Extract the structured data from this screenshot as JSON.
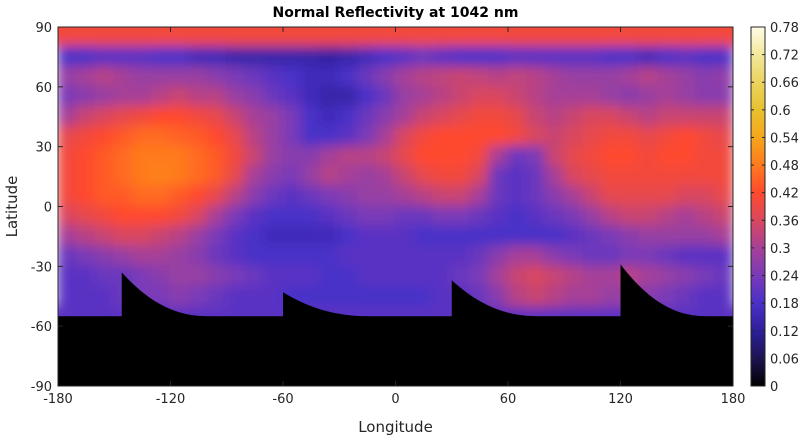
{
  "chart_data": {
    "type": "heatmap",
    "title": "Normal Reflectivity at 1042 nm",
    "xlabel": "Longitude",
    "ylabel": "Latitude",
    "xlim": [
      -180,
      180
    ],
    "ylim": [
      -90,
      90
    ],
    "x_ticks": [
      -180,
      -120,
      -60,
      0,
      60,
      120,
      180
    ],
    "x_tick_labels": [
      "-180",
      "-120",
      "-60",
      "0",
      "60",
      "120",
      "180"
    ],
    "y_ticks": [
      -90,
      -60,
      -30,
      0,
      30,
      60,
      90
    ],
    "y_tick_labels": [
      "-90",
      "-60",
      "-30",
      "0",
      "30",
      "60",
      "90"
    ],
    "colorbar": {
      "range": [
        0,
        0.78
      ],
      "ticks": [
        0,
        0.06,
        0.12,
        0.18,
        0.24,
        0.3,
        0.36,
        0.42,
        0.48,
        0.54,
        0.6,
        0.66,
        0.72,
        0.78
      ],
      "tick_labels": [
        "0",
        "0.06",
        "0.12",
        "0.18",
        "0.24",
        "0.3",
        "0.36",
        "0.42",
        "0.48",
        "0.54",
        "0.6",
        "0.66",
        "0.72",
        "0.78"
      ],
      "colormap": "hot-purple",
      "placement": "right"
    },
    "colormap_stops": [
      {
        "value": 0.0,
        "color": "#000000"
      },
      {
        "value": 0.06,
        "color": "#1c1450"
      },
      {
        "value": 0.12,
        "color": "#2d1f9a"
      },
      {
        "value": 0.18,
        "color": "#4a30c8"
      },
      {
        "value": 0.24,
        "color": "#7a3ab8"
      },
      {
        "value": 0.3,
        "color": "#a64198"
      },
      {
        "value": 0.36,
        "color": "#d9475e"
      },
      {
        "value": 0.42,
        "color": "#ff4a2d"
      },
      {
        "value": 0.48,
        "color": "#ff7a1e"
      },
      {
        "value": 0.54,
        "color": "#f5a61a"
      },
      {
        "value": 0.6,
        "color": "#e8c130"
      },
      {
        "value": 0.66,
        "color": "#ebd35e"
      },
      {
        "value": 0.72,
        "color": "#f3e89c"
      },
      {
        "value": 0.78,
        "color": "#fffbe6"
      }
    ],
    "no_data_color": "#000000",
    "grid": false,
    "grid_resolution_deg": 10,
    "longitudes": [
      -175,
      -165,
      -155,
      -145,
      -135,
      -125,
      -115,
      -105,
      -95,
      -85,
      -75,
      -65,
      -55,
      -45,
      -35,
      -25,
      -15,
      -5,
      5,
      15,
      25,
      35,
      45,
      55,
      65,
      75,
      85,
      95,
      105,
      115,
      125,
      135,
      145,
      155,
      165,
      175
    ],
    "latitudes": [
      85,
      75,
      65,
      55,
      45,
      35,
      25,
      15,
      5,
      -5,
      -15,
      -25,
      -35,
      -45
    ],
    "values": [
      [
        0.4,
        0.4,
        0.4,
        0.4,
        0.4,
        0.4,
        0.4,
        0.4,
        0.4,
        0.4,
        0.4,
        0.4,
        0.4,
        0.4,
        0.4,
        0.4,
        0.4,
        0.4,
        0.4,
        0.4,
        0.4,
        0.4,
        0.4,
        0.4,
        0.4,
        0.4,
        0.4,
        0.4,
        0.4,
        0.4,
        0.4,
        0.4,
        0.4,
        0.4,
        0.4,
        0.4
      ],
      [
        0.18,
        0.18,
        0.2,
        0.2,
        0.2,
        0.18,
        0.18,
        0.16,
        0.16,
        0.14,
        0.14,
        0.14,
        0.14,
        0.14,
        0.13,
        0.14,
        0.16,
        0.18,
        0.2,
        0.22,
        0.2,
        0.18,
        0.18,
        0.18,
        0.2,
        0.2,
        0.2,
        0.2,
        0.2,
        0.18,
        0.18,
        0.16,
        0.18,
        0.2,
        0.18,
        0.18
      ],
      [
        0.28,
        0.3,
        0.32,
        0.3,
        0.28,
        0.28,
        0.28,
        0.28,
        0.26,
        0.24,
        0.22,
        0.2,
        0.18,
        0.16,
        0.16,
        0.18,
        0.22,
        0.26,
        0.3,
        0.32,
        0.33,
        0.34,
        0.33,
        0.32,
        0.33,
        0.32,
        0.3,
        0.28,
        0.28,
        0.28,
        0.3,
        0.32,
        0.3,
        0.28,
        0.26,
        0.27
      ],
      [
        0.24,
        0.26,
        0.28,
        0.3,
        0.3,
        0.32,
        0.34,
        0.32,
        0.32,
        0.28,
        0.26,
        0.22,
        0.2,
        0.16,
        0.14,
        0.14,
        0.18,
        0.22,
        0.28,
        0.3,
        0.32,
        0.34,
        0.36,
        0.36,
        0.34,
        0.32,
        0.3,
        0.3,
        0.3,
        0.28,
        0.26,
        0.28,
        0.3,
        0.28,
        0.26,
        0.26
      ],
      [
        0.3,
        0.34,
        0.36,
        0.38,
        0.4,
        0.42,
        0.42,
        0.4,
        0.38,
        0.34,
        0.3,
        0.28,
        0.24,
        0.18,
        0.16,
        0.18,
        0.22,
        0.26,
        0.3,
        0.34,
        0.36,
        0.38,
        0.4,
        0.4,
        0.38,
        0.34,
        0.32,
        0.34,
        0.36,
        0.36,
        0.34,
        0.32,
        0.34,
        0.34,
        0.34,
        0.34
      ],
      [
        0.38,
        0.4,
        0.42,
        0.44,
        0.46,
        0.46,
        0.45,
        0.44,
        0.42,
        0.38,
        0.32,
        0.28,
        0.24,
        0.18,
        0.18,
        0.2,
        0.24,
        0.3,
        0.36,
        0.4,
        0.42,
        0.42,
        0.42,
        0.42,
        0.4,
        0.36,
        0.34,
        0.36,
        0.38,
        0.4,
        0.4,
        0.38,
        0.4,
        0.42,
        0.4,
        0.38
      ],
      [
        0.4,
        0.42,
        0.44,
        0.46,
        0.48,
        0.48,
        0.48,
        0.46,
        0.44,
        0.4,
        0.34,
        0.28,
        0.26,
        0.26,
        0.3,
        0.32,
        0.32,
        0.34,
        0.38,
        0.42,
        0.42,
        0.42,
        0.4,
        0.3,
        0.22,
        0.24,
        0.34,
        0.38,
        0.4,
        0.42,
        0.42,
        0.4,
        0.42,
        0.42,
        0.4,
        0.4
      ],
      [
        0.4,
        0.42,
        0.44,
        0.46,
        0.48,
        0.49,
        0.48,
        0.46,
        0.44,
        0.38,
        0.3,
        0.26,
        0.24,
        0.28,
        0.32,
        0.3,
        0.28,
        0.3,
        0.34,
        0.38,
        0.4,
        0.4,
        0.36,
        0.22,
        0.2,
        0.22,
        0.3,
        0.36,
        0.38,
        0.4,
        0.4,
        0.4,
        0.4,
        0.4,
        0.4,
        0.4
      ],
      [
        0.4,
        0.42,
        0.44,
        0.44,
        0.46,
        0.46,
        0.44,
        0.42,
        0.38,
        0.32,
        0.26,
        0.22,
        0.2,
        0.22,
        0.24,
        0.26,
        0.28,
        0.28,
        0.3,
        0.32,
        0.34,
        0.34,
        0.3,
        0.22,
        0.2,
        0.22,
        0.26,
        0.3,
        0.34,
        0.38,
        0.38,
        0.38,
        0.38,
        0.36,
        0.36,
        0.38
      ],
      [
        0.36,
        0.38,
        0.4,
        0.42,
        0.42,
        0.42,
        0.4,
        0.36,
        0.3,
        0.24,
        0.2,
        0.18,
        0.18,
        0.18,
        0.2,
        0.22,
        0.24,
        0.24,
        0.22,
        0.22,
        0.24,
        0.24,
        0.22,
        0.2,
        0.18,
        0.2,
        0.22,
        0.24,
        0.28,
        0.32,
        0.34,
        0.34,
        0.32,
        0.3,
        0.32,
        0.34
      ],
      [
        0.3,
        0.32,
        0.34,
        0.36,
        0.36,
        0.34,
        0.32,
        0.28,
        0.24,
        0.2,
        0.18,
        0.16,
        0.16,
        0.16,
        0.16,
        0.18,
        0.2,
        0.2,
        0.2,
        0.18,
        0.18,
        0.18,
        0.18,
        0.18,
        0.18,
        0.18,
        0.18,
        0.2,
        0.22,
        0.24,
        0.26,
        0.28,
        0.28,
        0.28,
        0.28,
        0.3
      ],
      [
        0.22,
        0.24,
        0.26,
        0.28,
        0.3,
        0.3,
        0.28,
        0.26,
        0.22,
        0.2,
        0.18,
        0.18,
        0.18,
        0.18,
        0.18,
        0.2,
        0.2,
        0.2,
        0.2,
        0.2,
        0.2,
        0.2,
        0.22,
        0.26,
        0.3,
        0.3,
        0.26,
        0.24,
        0.22,
        0.22,
        0.24,
        0.24,
        0.22,
        0.2,
        0.2,
        0.2
      ],
      [
        0.2,
        0.2,
        0.22,
        0.22,
        0.24,
        0.26,
        0.28,
        0.28,
        0.26,
        0.24,
        0.22,
        0.2,
        0.2,
        0.2,
        0.18,
        0.18,
        0.2,
        0.2,
        0.2,
        0.2,
        0.2,
        0.22,
        0.24,
        0.3,
        0.34,
        0.36,
        0.34,
        0.32,
        0.3,
        0.3,
        0.32,
        0.3,
        0.28,
        0.26,
        0.24,
        0.22
      ],
      [
        0.2,
        0.2,
        0.2,
        0.22,
        0.24,
        0.24,
        0.26,
        0.24,
        0.22,
        0.2,
        0.2,
        0.2,
        0.18,
        0.18,
        0.18,
        0.18,
        0.18,
        0.18,
        0.18,
        0.18,
        0.2,
        0.2,
        0.22,
        0.26,
        0.32,
        0.34,
        0.32,
        0.3,
        0.3,
        0.28,
        0.28,
        0.26,
        0.24,
        0.22,
        0.2,
        0.2
      ]
    ],
    "no_data_region": {
      "description_boundary_lat": -55,
      "spikes": [
        {
          "lon_start": -146,
          "lon_end": -100,
          "peak_lat": -33
        },
        {
          "lon_start": -60,
          "lon_end": -14,
          "peak_lat": -43
        },
        {
          "lon_start": 30,
          "lon_end": 76,
          "peak_lat": -37
        },
        {
          "lon_start": 120,
          "lon_end": 166,
          "peak_lat": -29
        }
      ]
    }
  }
}
